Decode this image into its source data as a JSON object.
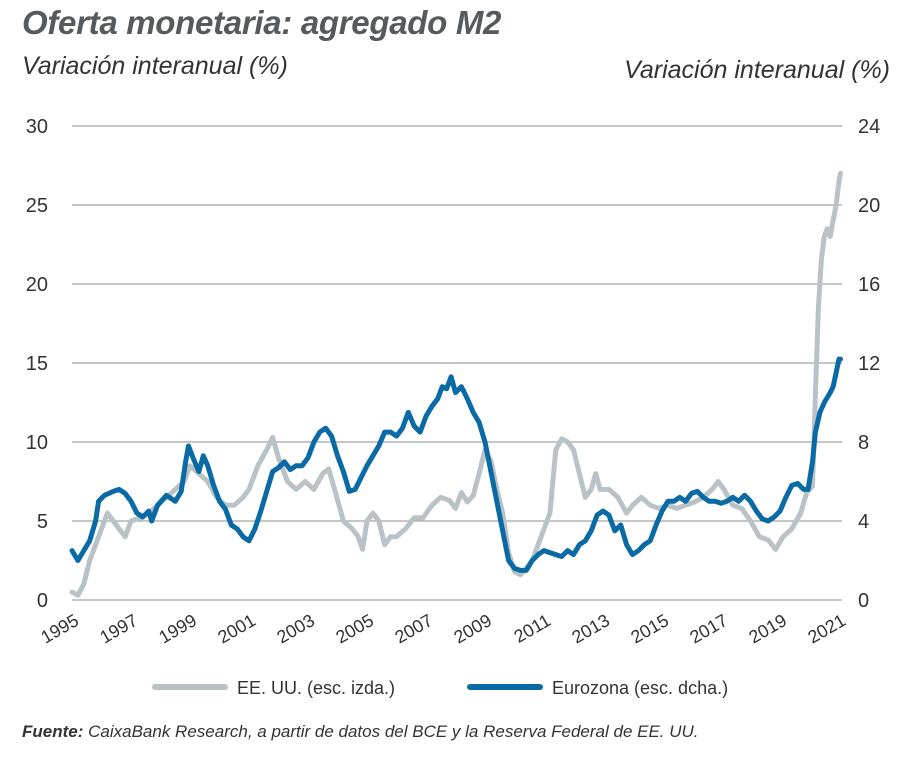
{
  "header": {
    "title": "Oferta monetaria: agregado M2",
    "left_axis_label": "Variación interanual (%)",
    "right_axis_label": "Variación interanual (%)"
  },
  "footer": {
    "source_label": "Fuente:",
    "source_text": "CaixaBank Research, a partir de datos del BCE y la Reserva Federal de EE. UU."
  },
  "colors": {
    "us": "#b9c2c6",
    "euro": "#0a6aa5",
    "grid": "#8c8c8c",
    "text": "#333333"
  },
  "chart_data": {
    "type": "line",
    "title": "Oferta monetaria: agregado M2",
    "xlabel": "",
    "ylabel": "Variación interanual (%)",
    "ylabel_right": "Variación interanual (%)",
    "xlim": [
      1995,
      2021.1
    ],
    "ylim": [
      0,
      30
    ],
    "ylim_right": [
      0,
      24
    ],
    "x_ticks": [
      "1995",
      "1997",
      "1999",
      "2001",
      "2003",
      "2005",
      "2007",
      "2009",
      "2011",
      "2013",
      "2015",
      "2017",
      "2019",
      "2021"
    ],
    "y_ticks_left": [
      "0",
      "5",
      "10",
      "15",
      "20",
      "25",
      "30"
    ],
    "y_ticks_right": [
      "0",
      "4",
      "8",
      "12",
      "16",
      "20",
      "24"
    ],
    "legend_position": "bottom",
    "series": [
      {
        "name": "EE. UU. (esc. izda.)",
        "axis": "left",
        "points": [
          [
            1995.0,
            0.5
          ],
          [
            1995.2,
            0.3
          ],
          [
            1995.4,
            1.0
          ],
          [
            1995.6,
            2.5
          ],
          [
            1995.8,
            3.5
          ],
          [
            1996.0,
            4.5
          ],
          [
            1996.2,
            5.5
          ],
          [
            1996.4,
            5.0
          ],
          [
            1996.6,
            4.5
          ],
          [
            1996.8,
            4.0
          ],
          [
            1997.0,
            5.0
          ],
          [
            1997.3,
            5.2
          ],
          [
            1997.6,
            5.5
          ],
          [
            1997.9,
            6.0
          ],
          [
            1998.2,
            6.5
          ],
          [
            1998.5,
            7.0
          ],
          [
            1998.8,
            7.5
          ],
          [
            1999.0,
            8.5
          ],
          [
            1999.3,
            8.0
          ],
          [
            1999.6,
            7.5
          ],
          [
            1999.9,
            6.5
          ],
          [
            2000.2,
            6.0
          ],
          [
            2000.5,
            6.0
          ],
          [
            2000.8,
            6.5
          ],
          [
            2001.0,
            7.0
          ],
          [
            2001.3,
            8.5
          ],
          [
            2001.6,
            9.5
          ],
          [
            2001.8,
            10.3
          ],
          [
            2002.0,
            9.0
          ],
          [
            2002.3,
            7.5
          ],
          [
            2002.6,
            7.0
          ],
          [
            2002.9,
            7.5
          ],
          [
            2003.2,
            7.0
          ],
          [
            2003.5,
            8.0
          ],
          [
            2003.7,
            8.3
          ],
          [
            2003.9,
            7.0
          ],
          [
            2004.2,
            5.0
          ],
          [
            2004.5,
            4.5
          ],
          [
            2004.7,
            4.0
          ],
          [
            2004.85,
            3.2
          ],
          [
            2005.0,
            5.0
          ],
          [
            2005.2,
            5.5
          ],
          [
            2005.4,
            5.0
          ],
          [
            2005.6,
            3.5
          ],
          [
            2005.8,
            4.0
          ],
          [
            2006.0,
            4.0
          ],
          [
            2006.3,
            4.5
          ],
          [
            2006.6,
            5.2
          ],
          [
            2006.9,
            5.2
          ],
          [
            2007.2,
            6.0
          ],
          [
            2007.5,
            6.5
          ],
          [
            2007.8,
            6.3
          ],
          [
            2008.0,
            5.8
          ],
          [
            2008.2,
            6.8
          ],
          [
            2008.4,
            6.2
          ],
          [
            2008.6,
            6.6
          ],
          [
            2008.8,
            8.0
          ],
          [
            2009.0,
            9.5
          ],
          [
            2009.2,
            8.8
          ],
          [
            2009.4,
            7.0
          ],
          [
            2009.6,
            5.5
          ],
          [
            2009.8,
            3.0
          ],
          [
            2010.0,
            1.8
          ],
          [
            2010.2,
            1.6
          ],
          [
            2010.4,
            2.0
          ],
          [
            2010.6,
            2.5
          ],
          [
            2010.8,
            3.5
          ],
          [
            2011.0,
            4.5
          ],
          [
            2011.2,
            5.5
          ],
          [
            2011.4,
            9.5
          ],
          [
            2011.6,
            10.2
          ],
          [
            2011.8,
            10.0
          ],
          [
            2012.0,
            9.5
          ],
          [
            2012.2,
            8.0
          ],
          [
            2012.4,
            6.5
          ],
          [
            2012.6,
            7.0
          ],
          [
            2012.75,
            8.0
          ],
          [
            2012.9,
            7.0
          ],
          [
            2013.2,
            7.0
          ],
          [
            2013.5,
            6.5
          ],
          [
            2013.8,
            5.5
          ],
          [
            2014.0,
            6.0
          ],
          [
            2014.3,
            6.5
          ],
          [
            2014.6,
            6.0
          ],
          [
            2014.9,
            5.8
          ],
          [
            2015.2,
            6.0
          ],
          [
            2015.5,
            5.8
          ],
          [
            2015.8,
            6.0
          ],
          [
            2016.1,
            6.2
          ],
          [
            2016.4,
            6.5
          ],
          [
            2016.7,
            7.0
          ],
          [
            2016.9,
            7.5
          ],
          [
            2017.1,
            7.0
          ],
          [
            2017.4,
            6.0
          ],
          [
            2017.7,
            5.8
          ],
          [
            2018.0,
            5.0
          ],
          [
            2018.3,
            4.0
          ],
          [
            2018.6,
            3.8
          ],
          [
            2018.85,
            3.2
          ],
          [
            2019.1,
            4.0
          ],
          [
            2019.4,
            4.5
          ],
          [
            2019.7,
            5.5
          ],
          [
            2019.9,
            6.8
          ],
          [
            2020.1,
            7.2
          ],
          [
            2020.2,
            13.0
          ],
          [
            2020.3,
            18.5
          ],
          [
            2020.4,
            21.5
          ],
          [
            2020.5,
            23.0
          ],
          [
            2020.6,
            23.5
          ],
          [
            2020.7,
            23.0
          ],
          [
            2020.8,
            24.0
          ],
          [
            2020.9,
            25.0
          ],
          [
            2021.0,
            26.5
          ],
          [
            2021.05,
            27.0
          ]
        ]
      },
      {
        "name": "Eurozona (esc. dcha.)",
        "axis": "right",
        "points": [
          [
            1995.0,
            2.5
          ],
          [
            1995.2,
            2.0
          ],
          [
            1995.4,
            2.5
          ],
          [
            1995.6,
            3.0
          ],
          [
            1995.8,
            4.0
          ],
          [
            1995.9,
            5.0
          ],
          [
            1996.1,
            5.3
          ],
          [
            1996.4,
            5.5
          ],
          [
            1996.6,
            5.6
          ],
          [
            1996.8,
            5.4
          ],
          [
            1997.0,
            5.0
          ],
          [
            1997.2,
            4.4
          ],
          [
            1997.4,
            4.2
          ],
          [
            1997.6,
            4.5
          ],
          [
            1997.7,
            4.0
          ],
          [
            1997.9,
            4.8
          ],
          [
            1998.2,
            5.3
          ],
          [
            1998.5,
            5.0
          ],
          [
            1998.7,
            5.5
          ],
          [
            1998.85,
            7.0
          ],
          [
            1998.95,
            7.8
          ],
          [
            1999.1,
            7.2
          ],
          [
            1999.3,
            6.5
          ],
          [
            1999.45,
            7.3
          ],
          [
            1999.6,
            6.8
          ],
          [
            1999.8,
            5.8
          ],
          [
            2000.0,
            5.0
          ],
          [
            2000.2,
            4.6
          ],
          [
            2000.4,
            3.8
          ],
          [
            2000.6,
            3.6
          ],
          [
            2000.8,
            3.2
          ],
          [
            2001.0,
            3.0
          ],
          [
            2001.2,
            3.6
          ],
          [
            2001.4,
            4.5
          ],
          [
            2001.6,
            5.5
          ],
          [
            2001.8,
            6.5
          ],
          [
            2002.0,
            6.7
          ],
          [
            2002.2,
            7.0
          ],
          [
            2002.4,
            6.6
          ],
          [
            2002.6,
            6.8
          ],
          [
            2002.8,
            6.8
          ],
          [
            2003.0,
            7.2
          ],
          [
            2003.2,
            8.0
          ],
          [
            2003.4,
            8.5
          ],
          [
            2003.6,
            8.7
          ],
          [
            2003.8,
            8.3
          ],
          [
            2004.0,
            7.3
          ],
          [
            2004.2,
            6.5
          ],
          [
            2004.4,
            5.5
          ],
          [
            2004.6,
            5.6
          ],
          [
            2004.8,
            6.2
          ],
          [
            2005.0,
            6.8
          ],
          [
            2005.2,
            7.3
          ],
          [
            2005.4,
            7.8
          ],
          [
            2005.6,
            8.5
          ],
          [
            2005.8,
            8.5
          ],
          [
            2006.0,
            8.3
          ],
          [
            2006.2,
            8.7
          ],
          [
            2006.4,
            9.5
          ],
          [
            2006.6,
            8.8
          ],
          [
            2006.8,
            8.5
          ],
          [
            2007.0,
            9.3
          ],
          [
            2007.2,
            9.8
          ],
          [
            2007.4,
            10.2
          ],
          [
            2007.55,
            10.8
          ],
          [
            2007.7,
            10.7
          ],
          [
            2007.85,
            11.3
          ],
          [
            2008.0,
            10.5
          ],
          [
            2008.2,
            10.8
          ],
          [
            2008.4,
            10.2
          ],
          [
            2008.6,
            9.5
          ],
          [
            2008.8,
            9.0
          ],
          [
            2009.0,
            8.0
          ],
          [
            2009.2,
            6.5
          ],
          [
            2009.4,
            5.0
          ],
          [
            2009.6,
            3.5
          ],
          [
            2009.8,
            2.0
          ],
          [
            2010.0,
            1.6
          ],
          [
            2010.2,
            1.5
          ],
          [
            2010.4,
            1.5
          ],
          [
            2010.6,
            2.0
          ],
          [
            2010.8,
            2.3
          ],
          [
            2011.0,
            2.5
          ],
          [
            2011.2,
            2.4
          ],
          [
            2011.4,
            2.3
          ],
          [
            2011.6,
            2.2
          ],
          [
            2011.8,
            2.5
          ],
          [
            2012.0,
            2.3
          ],
          [
            2012.2,
            2.8
          ],
          [
            2012.4,
            3.0
          ],
          [
            2012.6,
            3.5
          ],
          [
            2012.8,
            4.3
          ],
          [
            2013.0,
            4.5
          ],
          [
            2013.2,
            4.3
          ],
          [
            2013.4,
            3.5
          ],
          [
            2013.6,
            3.8
          ],
          [
            2013.8,
            2.8
          ],
          [
            2014.0,
            2.3
          ],
          [
            2014.2,
            2.5
          ],
          [
            2014.4,
            2.8
          ],
          [
            2014.6,
            3.0
          ],
          [
            2014.8,
            3.8
          ],
          [
            2015.0,
            4.5
          ],
          [
            2015.2,
            5.0
          ],
          [
            2015.4,
            5.0
          ],
          [
            2015.6,
            5.2
          ],
          [
            2015.8,
            5.0
          ],
          [
            2016.0,
            5.4
          ],
          [
            2016.2,
            5.5
          ],
          [
            2016.4,
            5.2
          ],
          [
            2016.6,
            5.0
          ],
          [
            2016.8,
            5.0
          ],
          [
            2017.0,
            4.9
          ],
          [
            2017.2,
            5.0
          ],
          [
            2017.4,
            5.2
          ],
          [
            2017.6,
            5.0
          ],
          [
            2017.8,
            5.3
          ],
          [
            2018.0,
            5.0
          ],
          [
            2018.2,
            4.5
          ],
          [
            2018.4,
            4.1
          ],
          [
            2018.6,
            4.0
          ],
          [
            2018.8,
            4.2
          ],
          [
            2019.0,
            4.5
          ],
          [
            2019.2,
            5.2
          ],
          [
            2019.4,
            5.8
          ],
          [
            2019.6,
            5.9
          ],
          [
            2019.8,
            5.6
          ],
          [
            2019.95,
            5.6
          ],
          [
            2020.1,
            7.0
          ],
          [
            2020.2,
            8.5
          ],
          [
            2020.35,
            9.5
          ],
          [
            2020.5,
            10.0
          ],
          [
            2020.7,
            10.5
          ],
          [
            2020.8,
            10.8
          ],
          [
            2020.9,
            11.5
          ],
          [
            2021.0,
            12.2
          ],
          [
            2021.05,
            12.2
          ]
        ]
      }
    ]
  }
}
